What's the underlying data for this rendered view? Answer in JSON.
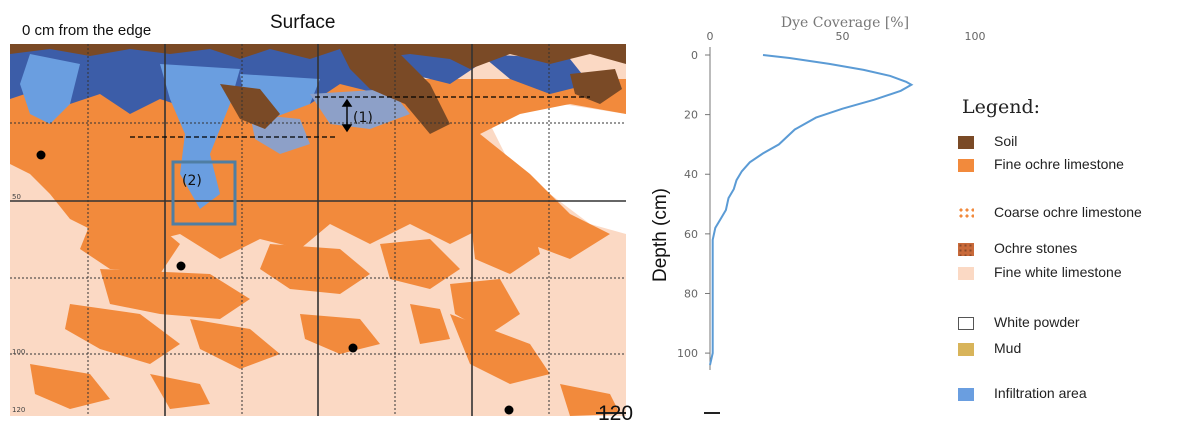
{
  "profile": {
    "edge_label": "0 cm from the edge",
    "surface_label": "Surface",
    "depth_ticks": [
      "50",
      "100",
      "120"
    ],
    "marker_1": "(1)",
    "marker_2": "(2)"
  },
  "bottom_label": "120",
  "legend": {
    "title": "Legend:",
    "items": [
      {
        "label": "Soil",
        "color": "#7a4a26"
      },
      {
        "label": "Fine ochre limestone",
        "color": "#f28a3c"
      },
      {
        "label": "Coarse ochre limestone",
        "color": "#f28a3c"
      },
      {
        "label": "Ochre stones",
        "color": "#c96a3a"
      },
      {
        "label": "Fine white limestone",
        "color": "#fbd9c4"
      },
      {
        "label": "White powder",
        "color": "#ffffff"
      },
      {
        "label": "Mud",
        "color": "#d8b45a"
      },
      {
        "label": "Infiltration area",
        "color": "#6a9ee0"
      }
    ]
  },
  "chart_data": {
    "type": "line",
    "title": "Dye Coverage [%]",
    "xlabel": "",
    "ylabel": "Depth (cm)",
    "xlim": [
      0,
      100
    ],
    "ylim": [
      0,
      105
    ],
    "x_ticks": [
      0,
      50,
      100
    ],
    "y_ticks": [
      0,
      20,
      40,
      60,
      80,
      100
    ],
    "grid": false,
    "series": [
      {
        "color": "#5b9bd5",
        "x": [
          20,
          30,
          45,
          58,
          68,
          74,
          76,
          72,
          62,
          50,
          40,
          32,
          26,
          20,
          15,
          12,
          10,
          9,
          7,
          6,
          4,
          2,
          1,
          1,
          1,
          1,
          1,
          0
        ],
        "y": [
          0,
          1,
          3,
          5,
          7,
          9,
          10,
          12,
          15,
          18,
          21,
          25,
          30,
          33,
          36,
          39,
          42,
          45,
          48,
          52,
          55,
          58,
          62,
          70,
          80,
          90,
          100,
          104
        ]
      }
    ]
  }
}
